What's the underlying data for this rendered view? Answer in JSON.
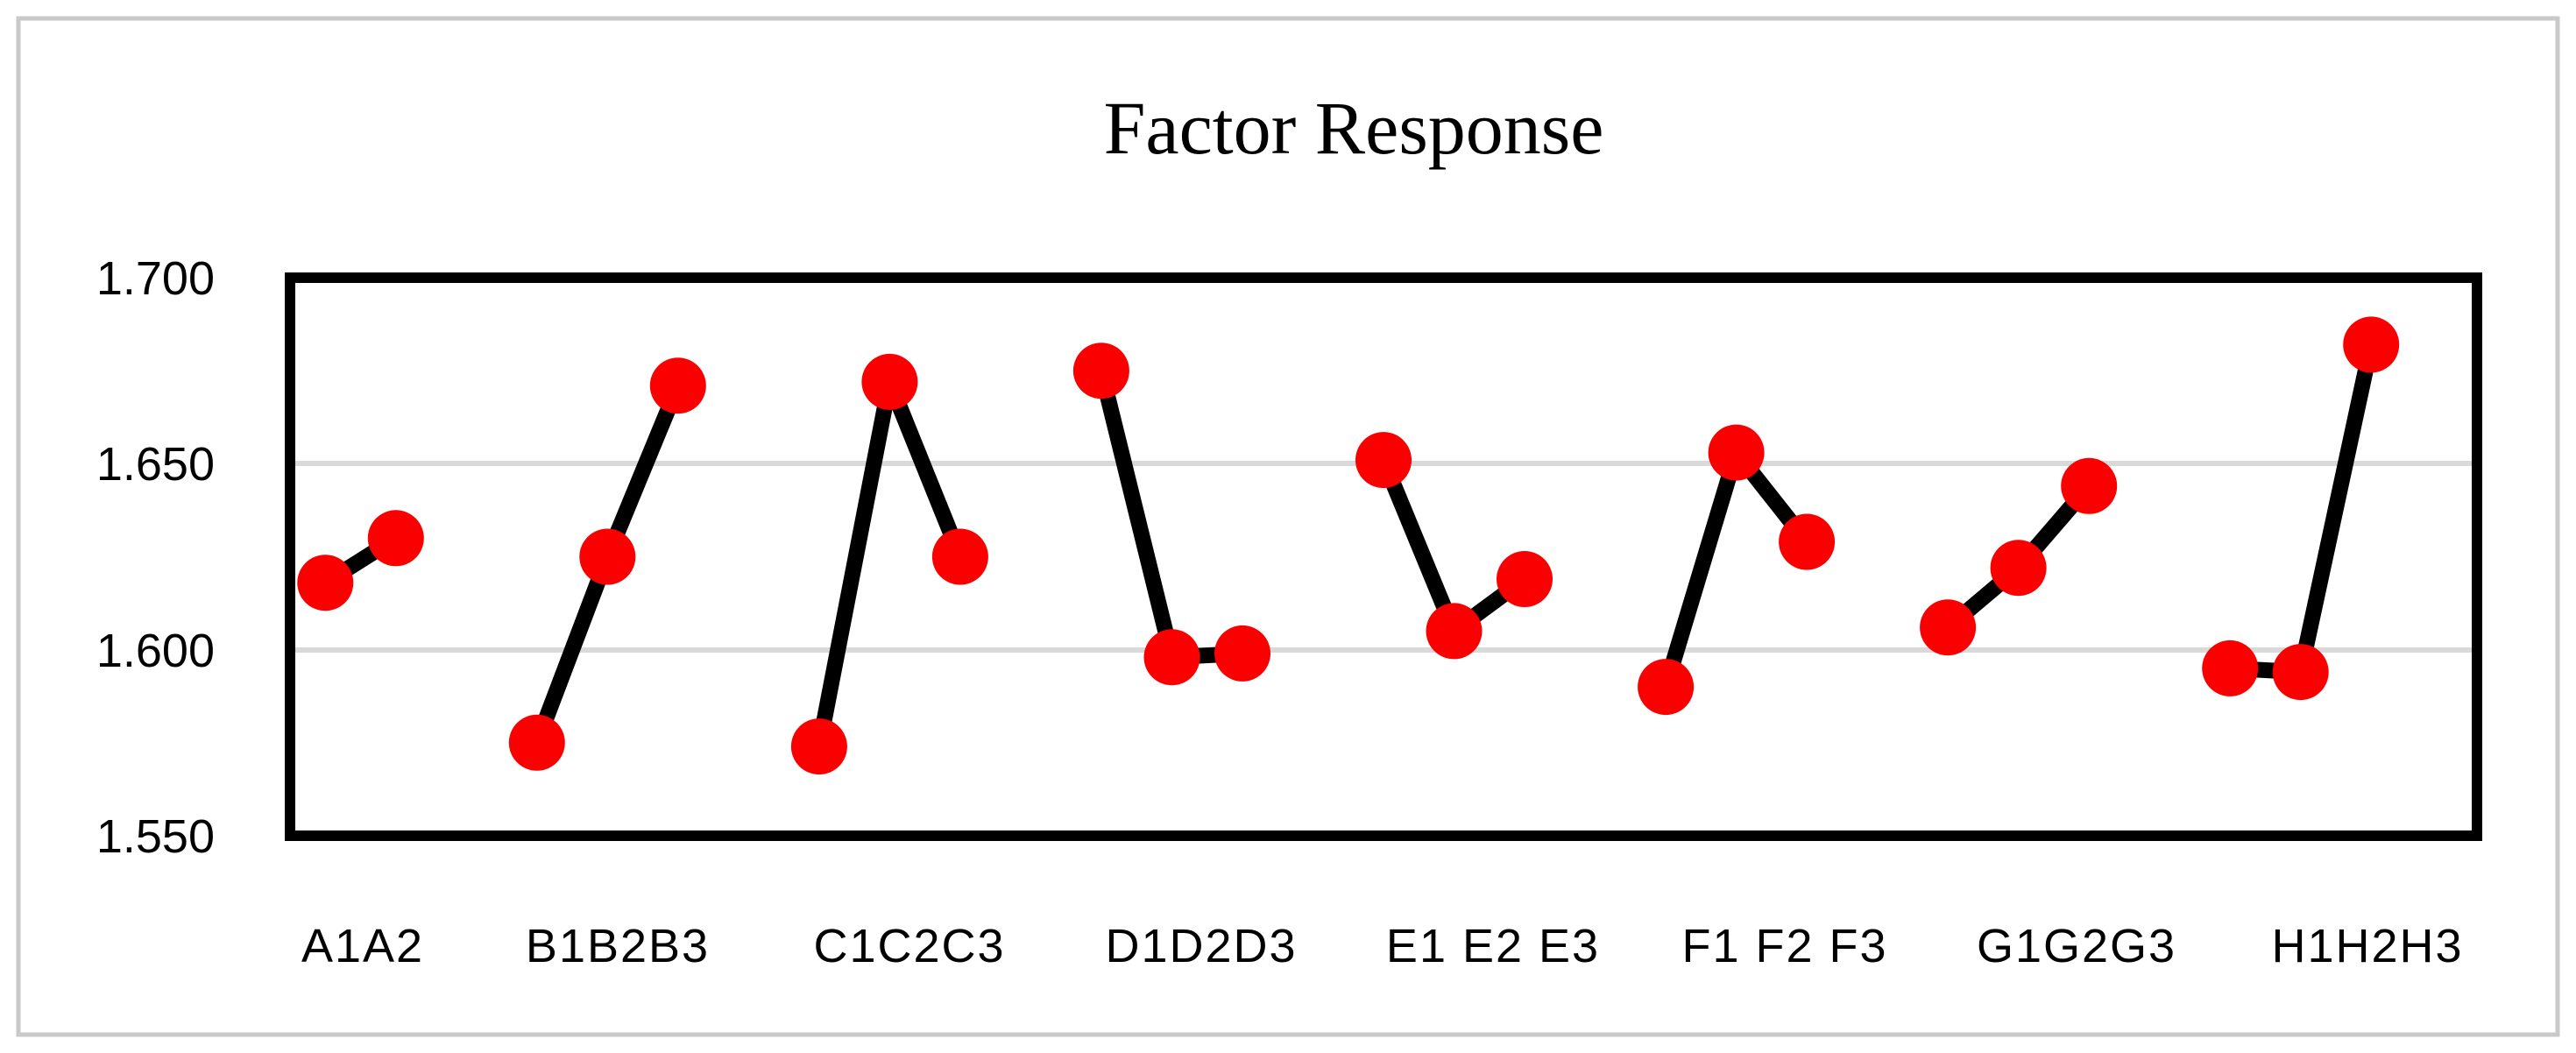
{
  "window": {
    "background_color": "#ffffff",
    "frame_color": "#c9c9c9"
  },
  "chart_data": {
    "type": "line",
    "title": "Factor Response",
    "xlabel": "",
    "ylabel": "",
    "grid": true,
    "legend": false,
    "colors": {
      "marker": "#fa0000",
      "line": "#000000",
      "gridline": "#d9d9d9",
      "plot_border": "#000000",
      "text": "#000000"
    },
    "y_axis": {
      "min": 1.55,
      "max": 1.7,
      "tick_step": 0.05,
      "ticks": [
        {
          "label": "1.700",
          "value": 1.7
        },
        {
          "label": "1.650",
          "value": 1.65
        },
        {
          "label": "1.600",
          "value": 1.6
        },
        {
          "label": "1.550",
          "value": 1.55
        }
      ],
      "gridline_values": [
        1.65,
        1.6
      ]
    },
    "x_axis": {
      "group_labels": [
        "A1A2",
        "B1B2B3",
        "C1C2C3",
        "D1D2D3",
        "E1 E2 E3",
        "F1 F2 F3",
        "G1G2G3",
        "H1H2H3"
      ]
    },
    "groups": [
      {
        "label": "A1A2",
        "points": [
          {
            "name": "A1",
            "value": 1.618
          },
          {
            "name": "A2",
            "value": 1.63
          }
        ]
      },
      {
        "label": "B1B2B3",
        "points": [
          {
            "name": "B1",
            "value": 1.575
          },
          {
            "name": "B2",
            "value": 1.625
          },
          {
            "name": "B3",
            "value": 1.671
          }
        ]
      },
      {
        "label": "C1C2C3",
        "points": [
          {
            "name": "C1",
            "value": 1.574
          },
          {
            "name": "C2",
            "value": 1.672
          },
          {
            "name": "C3",
            "value": 1.625
          }
        ]
      },
      {
        "label": "D1D2D3",
        "points": [
          {
            "name": "D1",
            "value": 1.675
          },
          {
            "name": "D2",
            "value": 1.598
          },
          {
            "name": "D3",
            "value": 1.599
          }
        ]
      },
      {
        "label": "E1 E2 E3",
        "points": [
          {
            "name": "E1",
            "value": 1.651
          },
          {
            "name": "E2",
            "value": 1.605
          },
          {
            "name": "E3",
            "value": 1.619
          }
        ]
      },
      {
        "label": "F1 F2 F3",
        "points": [
          {
            "name": "F1",
            "value": 1.59
          },
          {
            "name": "F2",
            "value": 1.653
          },
          {
            "name": "F3",
            "value": 1.629
          }
        ]
      },
      {
        "label": "G1G2G3",
        "points": [
          {
            "name": "G1",
            "value": 1.606
          },
          {
            "name": "G2",
            "value": 1.622
          },
          {
            "name": "G3",
            "value": 1.644
          }
        ]
      },
      {
        "label": "H1H2H3",
        "points": [
          {
            "name": "H1",
            "value": 1.595
          },
          {
            "name": "H2",
            "value": 1.594
          },
          {
            "name": "H3",
            "value": 1.682
          }
        ]
      }
    ]
  }
}
